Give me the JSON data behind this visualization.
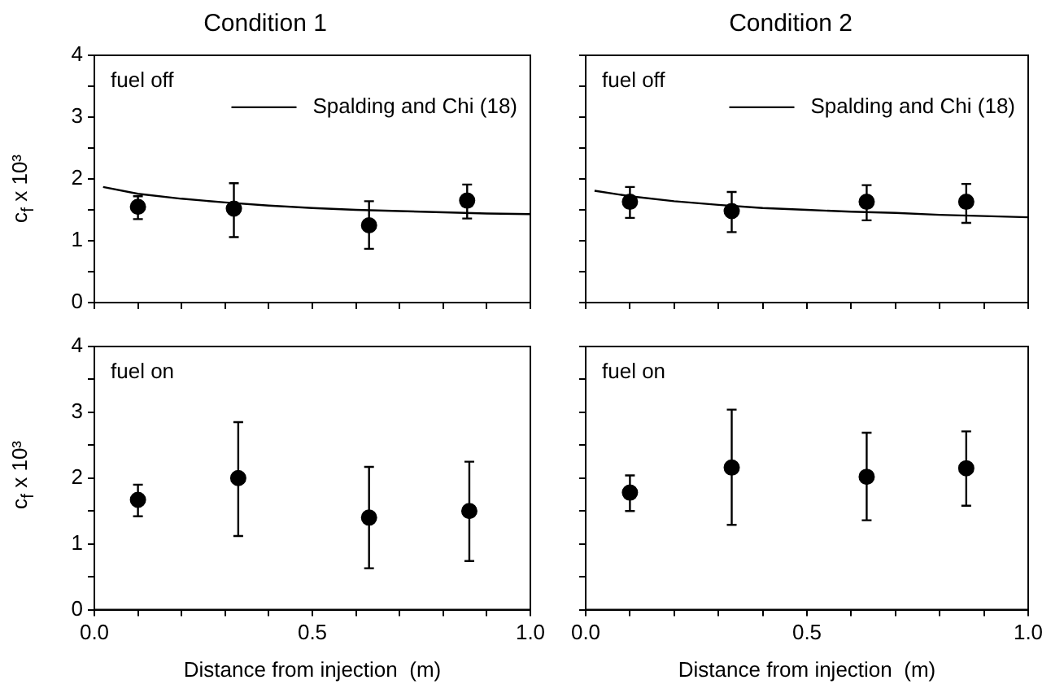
{
  "chart_data": [
    {
      "type": "scatter",
      "title": "Condition 1",
      "ylabel": "c$_{f}$ x 10³",
      "xlim": [
        0,
        1
      ],
      "xticks": [
        {
          "value": 0,
          "label": null
        },
        {
          "value": 0.1,
          "label": null
        },
        {
          "value": 0.2,
          "label": null
        },
        {
          "value": 0.3,
          "label": null
        },
        {
          "value": 0.4,
          "label": null
        },
        {
          "value": 0.5,
          "label": null
        },
        {
          "value": 0.6,
          "label": null
        },
        {
          "value": 0.7,
          "label": null
        },
        {
          "value": 0.8,
          "label": null
        },
        {
          "value": 0.9,
          "label": null
        },
        {
          "value": 1,
          "label": null
        }
      ],
      "ylim": [
        0,
        4
      ],
      "yticks": [
        0,
        {
          "value": 0.5,
          "label": null
        },
        1,
        {
          "value": 1.5,
          "label": null
        },
        2,
        {
          "value": 2.5,
          "label": null
        },
        3,
        {
          "value": 3.5,
          "label": null
        },
        4
      ],
      "tick_labels": "y",
      "legend": "top right",
      "annotations": [
        "fuel off"
      ],
      "series": [
        {
          "name": "Spalding and Chi (18)",
          "type": "line",
          "color": "#000000",
          "x": [
            0.02,
            0.1,
            0.2,
            0.3,
            0.4,
            0.5,
            0.6,
            0.7,
            0.8,
            0.9,
            1.0
          ],
          "values": [
            1.87,
            1.76,
            1.68,
            1.62,
            1.57,
            1.53,
            1.5,
            1.48,
            1.46,
            1.44,
            1.43
          ]
        },
        {
          "marker": "circle",
          "color": "#000000",
          "x": [
            0.1,
            0.32,
            0.63,
            0.855
          ],
          "values": [
            1.55,
            1.52,
            1.25,
            1.65
          ],
          "errors": [
            [
              1.35,
              1.72
            ],
            [
              1.06,
              1.93
            ],
            [
              0.87,
              1.64
            ],
            [
              1.36,
              1.91
            ]
          ]
        }
      ]
    },
    {
      "type": "scatter",
      "title": "Condition 2",
      "xlim": [
        0,
        1
      ],
      "xticks": [
        {
          "value": 0,
          "label": null
        },
        {
          "value": 0.1,
          "label": null
        },
        {
          "value": 0.2,
          "label": null
        },
        {
          "value": 0.3,
          "label": null
        },
        {
          "value": 0.4,
          "label": null
        },
        {
          "value": 0.5,
          "label": null
        },
        {
          "value": 0.6,
          "label": null
        },
        {
          "value": 0.7,
          "label": null
        },
        {
          "value": 0.8,
          "label": null
        },
        {
          "value": 0.9,
          "label": null
        },
        {
          "value": 1,
          "label": null
        }
      ],
      "ylim": [
        0,
        4
      ],
      "yticks": [
        {
          "value": 0,
          "label": null
        },
        {
          "value": 0.5,
          "label": null
        },
        {
          "value": 1,
          "label": null
        },
        {
          "value": 1.5,
          "label": null
        },
        {
          "value": 2,
          "label": null
        },
        {
          "value": 2.5,
          "label": null
        },
        {
          "value": 3,
          "label": null
        },
        {
          "value": 3.5,
          "label": null
        },
        {
          "value": 4,
          "label": null
        }
      ],
      "tick_labels": false,
      "legend": "top right",
      "annotations": [
        "fuel off"
      ],
      "series": [
        {
          "name": "Spalding and Chi (18)",
          "type": "line",
          "color": "#000000",
          "x": [
            0.02,
            0.1,
            0.2,
            0.3,
            0.4,
            0.5,
            0.6,
            0.7,
            0.8,
            0.9,
            1.0
          ],
          "values": [
            1.81,
            1.72,
            1.64,
            1.58,
            1.53,
            1.5,
            1.47,
            1.45,
            1.42,
            1.4,
            1.38
          ]
        },
        {
          "marker": "circle",
          "color": "#000000",
          "x": [
            0.1,
            0.33,
            0.635,
            0.86
          ],
          "values": [
            1.63,
            1.48,
            1.63,
            1.63
          ],
          "errors": [
            [
              1.37,
              1.87
            ],
            [
              1.14,
              1.79
            ],
            [
              1.33,
              1.9
            ],
            [
              1.29,
              1.92
            ]
          ]
        }
      ]
    },
    {
      "type": "scatter",
      "xlabel": "Distance from injection  (m)",
      "ylabel": "c$_{f}$ x 10³",
      "xlim": [
        0,
        1
      ],
      "xticks": [
        "0.0",
        {
          "value": 0.1,
          "label": null
        },
        {
          "value": 0.2,
          "label": null
        },
        {
          "value": 0.3,
          "label": null
        },
        {
          "value": 0.4,
          "label": null
        },
        {
          "value": 0.5,
          "label": "0.5"
        },
        {
          "value": 0.6,
          "label": null
        },
        {
          "value": 0.7,
          "label": null
        },
        {
          "value": 0.8,
          "label": null
        },
        {
          "value": 0.9,
          "label": null
        },
        {
          "value": 1,
          "label": "1.0"
        }
      ],
      "ylim": [
        0,
        4
      ],
      "yticks": [
        0,
        {
          "value": 0.5,
          "label": null
        },
        1,
        {
          "value": 1.5,
          "label": null
        },
        2,
        {
          "value": 2.5,
          "label": null
        },
        3,
        {
          "value": 3.5,
          "label": null
        },
        4
      ],
      "annotations": [
        "fuel on"
      ],
      "series": [
        {
          "marker": "circle",
          "color": "#000000",
          "x": [
            0.1,
            0.33,
            0.63,
            0.86
          ],
          "values": [
            1.67,
            2.0,
            1.4,
            1.5
          ],
          "errors": [
            [
              1.42,
              1.9
            ],
            [
              1.12,
              2.85
            ],
            [
              0.63,
              2.17
            ],
            [
              0.74,
              2.25
            ]
          ]
        }
      ]
    },
    {
      "type": "scatter",
      "xlabel": "Distance from injection  (m)",
      "xlim": [
        0,
        1
      ],
      "xticks": [
        {
          "value": 0,
          "label": "0.0"
        },
        {
          "value": 0.1,
          "label": null
        },
        {
          "value": 0.2,
          "label": null
        },
        {
          "value": 0.3,
          "label": null
        },
        {
          "value": 0.4,
          "label": null
        },
        {
          "value": 0.5,
          "label": "0.5"
        },
        {
          "value": 0.6,
          "label": null
        },
        {
          "value": 0.7,
          "label": null
        },
        {
          "value": 0.8,
          "label": null
        },
        {
          "value": 0.9,
          "label": null
        },
        {
          "value": 1,
          "label": "1.0"
        }
      ],
      "ylim": [
        0,
        4
      ],
      "yticks": [
        {
          "value": 0,
          "label": null
        },
        {
          "value": 0.5,
          "label": null
        },
        {
          "value": 1,
          "label": null
        },
        {
          "value": 1.5,
          "label": null
        },
        {
          "value": 2,
          "label": null
        },
        {
          "value": 2.5,
          "label": null
        },
        {
          "value": 3,
          "label": null
        },
        {
          "value": 3.5,
          "label": null
        },
        {
          "value": 4,
          "label": null
        }
      ],
      "tick_labels": "x",
      "annotations": [
        "fuel on"
      ],
      "series": [
        {
          "marker": "circle",
          "color": "#000000",
          "x": [
            0.1,
            0.33,
            0.635,
            0.86
          ],
          "values": [
            1.78,
            2.16,
            2.02,
            2.15
          ],
          "errors": [
            [
              1.5,
              2.04
            ],
            [
              1.29,
              3.04
            ],
            [
              1.36,
              2.69
            ],
            [
              1.58,
              2.71
            ]
          ]
        }
      ]
    }
  ]
}
